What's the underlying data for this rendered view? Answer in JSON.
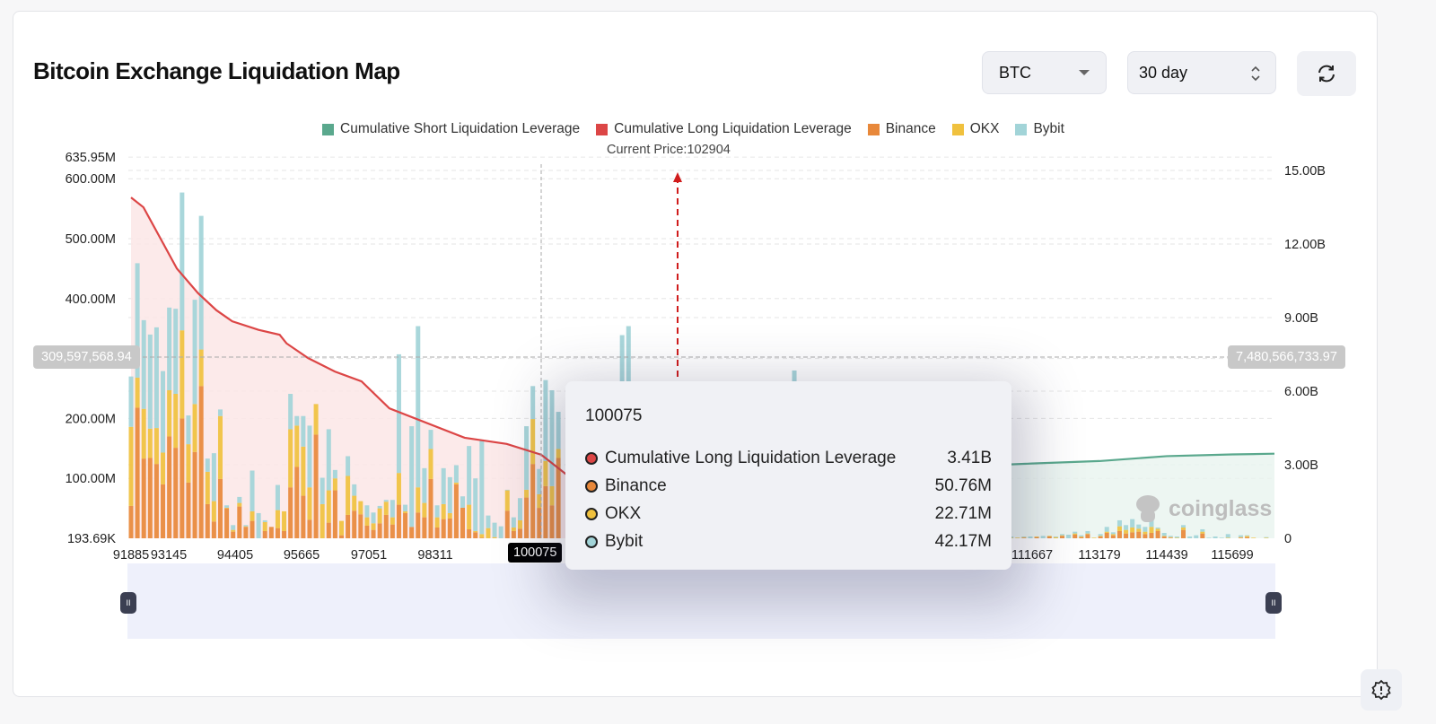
{
  "header": {
    "title": "Bitcoin Exchange Liquidation Map",
    "coin_select": "BTC",
    "range_select": "30 day",
    "refresh_icon": "refresh-icon"
  },
  "alert_icon": "badge-alert-icon",
  "watermark": "coinglass",
  "chart_data": {
    "type": "bar",
    "legend": [
      {
        "name": "Cumulative Short Liquidation Leverage",
        "color": "#5aa88d"
      },
      {
        "name": "Cumulative Long Liquidation Leverage",
        "color": "#dc4646"
      },
      {
        "name": "Binance",
        "color": "#e8883a"
      },
      {
        "name": "OKX",
        "color": "#f0c13e"
      },
      {
        "name": "Bybit",
        "color": "#a2d4d8"
      }
    ],
    "legend_position": "top-center",
    "current_price_label": "Current Price:102904",
    "current_price": 102904,
    "x_ticks": [
      "91885",
      "93145",
      "94405",
      "95665",
      "97051",
      "98311",
      "111667",
      "113179",
      "114439",
      "115699"
    ],
    "left_axis": {
      "ticks": [
        "635.95M",
        "600.00M",
        "500.00M",
        "400.00M",
        "200.00M",
        "100.00M",
        "193.69K"
      ],
      "range_M": [
        0.19369,
        635.95
      ]
    },
    "right_axis": {
      "ticks": [
        "15.00B",
        "12.00B",
        "9.00B",
        "6.00B",
        "3.00B",
        "0"
      ],
      "range_B": [
        0,
        15
      ]
    },
    "crosshair": {
      "x": "100075",
      "left_value": "309,597,568.94",
      "right_value": "7,480,566,733.97"
    },
    "grid": true,
    "bar_units": "M",
    "bar_fields": [
      "Binance",
      "OKX",
      "Bybit"
    ],
    "bars": [
      [
        54,
        132,
        84
      ],
      [
        218,
        50,
        191
      ],
      [
        133,
        83,
        148
      ],
      [
        134,
        49,
        157
      ],
      [
        124,
        60,
        168
      ],
      [
        90,
        53,
        136
      ],
      [
        170,
        77,
        138
      ],
      [
        151,
        90,
        142
      ],
      [
        200,
        147,
        230
      ],
      [
        93,
        64,
        48
      ],
      [
        144,
        80,
        174
      ],
      [
        254,
        61,
        223
      ],
      [
        57,
        54,
        22
      ],
      [
        28,
        34,
        80
      ],
      [
        99,
        105,
        11
      ],
      [
        50,
        1,
        4
      ],
      [
        11,
        3,
        8
      ],
      [
        53,
        6,
        10
      ],
      [
        19,
        1,
        2
      ],
      [
        29,
        16,
        68
      ],
      [
        0,
        0,
        42
      ],
      [
        12,
        15,
        3
      ],
      [
        19,
        0,
        0
      ],
      [
        17,
        30,
        42
      ],
      [
        12,
        33,
        0
      ],
      [
        85,
        97,
        59
      ],
      [
        119,
        69,
        16
      ],
      [
        71,
        82,
        51
      ],
      [
        31,
        54,
        103
      ],
      [
        173,
        51,
        0
      ],
      [
        0,
        57,
        44
      ],
      [
        26,
        54,
        102
      ],
      [
        80,
        20,
        14
      ],
      [
        5,
        24,
        0
      ],
      [
        39,
        65,
        33
      ],
      [
        46,
        25,
        19
      ],
      [
        40,
        22,
        0
      ],
      [
        21,
        14,
        20
      ],
      [
        14,
        11,
        18
      ],
      [
        25,
        25,
        4
      ],
      [
        39,
        22,
        3
      ],
      [
        23,
        12,
        29
      ],
      [
        56,
        53,
        198
      ],
      [
        42,
        3,
        11
      ],
      [
        19,
        0,
        168
      ],
      [
        43,
        42,
        269
      ],
      [
        35,
        24,
        58
      ],
      [
        99,
        50,
        32
      ],
      [
        18,
        17,
        20
      ],
      [
        32,
        25,
        60
      ],
      [
        33,
        9,
        60
      ],
      [
        90,
        3,
        29
      ],
      [
        51,
        0,
        19
      ],
      [
        15,
        41,
        98
      ],
      [
        10,
        2,
        88
      ],
      [
        1,
        6,
        156
      ],
      [
        0,
        17,
        21
      ],
      [
        0,
        2,
        24
      ],
      [
        0,
        0,
        20
      ],
      [
        46,
        34,
        1
      ],
      [
        12,
        6,
        17
      ],
      [
        16,
        14,
        37
      ],
      [
        68,
        13,
        106
      ],
      [
        124,
        75,
        55
      ],
      [
        50.76,
        22.71,
        42.17
      ],
      [
        87,
        42,
        135
      ],
      [
        55,
        32,
        160
      ],
      [
        134,
        15,
        62
      ],
      [
        0,
        0,
        0
      ],
      [
        0,
        0,
        0
      ],
      [
        0,
        0,
        0
      ],
      [
        0,
        0,
        0
      ],
      [
        0,
        0,
        0
      ],
      [
        0,
        0,
        0
      ],
      [
        0,
        0,
        0
      ],
      [
        0,
        0,
        0
      ],
      [
        0,
        0,
        0
      ],
      [
        20,
        10,
        309
      ],
      [
        20,
        10,
        324
      ],
      [
        0,
        0,
        0
      ],
      [
        0,
        0,
        0
      ],
      [
        0,
        0,
        0
      ],
      [
        0,
        0,
        0
      ],
      [
        0,
        0,
        0
      ],
      [
        0,
        0,
        0
      ],
      [
        0,
        0,
        0
      ],
      [
        0,
        0,
        0
      ],
      [
        0,
        0,
        0
      ],
      [
        0,
        0,
        0
      ],
      [
        0,
        0,
        0
      ],
      [
        0,
        0,
        0
      ],
      [
        0,
        0,
        0
      ],
      [
        0,
        0,
        0
      ],
      [
        0,
        0,
        0
      ],
      [
        0,
        0,
        0
      ],
      [
        0,
        0,
        0
      ],
      [
        0,
        0,
        0
      ],
      [
        0,
        0,
        0
      ],
      [
        0,
        0,
        0
      ],
      [
        0,
        0,
        0
      ],
      [
        0,
        0,
        0
      ],
      [
        0,
        0,
        0
      ],
      [
        0,
        0,
        0
      ],
      [
        0,
        0,
        0
      ],
      [
        30,
        20,
        230
      ],
      [
        0,
        0,
        0
      ],
      [
        0,
        0,
        0
      ],
      [
        0,
        0,
        0
      ],
      [
        0,
        0,
        0
      ],
      [
        0,
        0,
        0
      ],
      [
        0,
        0,
        0
      ],
      [
        0,
        0,
        0
      ],
      [
        0,
        0,
        0
      ],
      [
        0,
        0,
        0
      ],
      [
        0,
        0,
        0
      ],
      [
        0,
        0,
        0
      ],
      [
        0,
        0,
        0
      ],
      [
        0,
        0,
        0
      ],
      [
        0,
        0,
        0
      ],
      [
        0,
        0,
        0
      ],
      [
        0,
        0,
        0
      ],
      [
        0,
        0,
        0
      ],
      [
        0,
        0,
        0
      ],
      [
        0,
        0,
        0
      ],
      [
        0,
        0,
        0
      ],
      [
        0,
        0,
        0
      ],
      [
        0,
        0,
        0
      ],
      [
        0,
        0,
        0
      ],
      [
        0,
        0,
        0
      ],
      [
        0,
        0,
        0
      ],
      [
        0,
        0,
        0
      ],
      [
        0,
        0,
        0
      ],
      [
        0,
        0,
        0
      ],
      [
        0,
        0,
        0
      ],
      [
        0,
        0,
        0
      ],
      [
        0,
        0,
        0
      ],
      [
        0,
        0,
        0
      ],
      [
        0,
        0,
        0
      ],
      [
        0,
        1,
        2
      ],
      [
        0,
        1,
        0
      ],
      [
        1,
        1,
        1
      ],
      [
        0,
        0,
        3
      ],
      [
        2,
        1,
        0
      ],
      [
        0,
        0,
        4
      ],
      [
        3,
        1,
        0
      ],
      [
        0,
        2,
        1
      ],
      [
        4,
        1,
        2
      ],
      [
        0,
        0,
        6
      ],
      [
        6,
        2,
        3
      ],
      [
        2,
        1,
        2
      ],
      [
        7,
        1,
        4
      ],
      [
        0,
        1,
        0
      ],
      [
        3,
        1,
        3
      ],
      [
        9,
        2,
        8
      ],
      [
        5,
        2,
        3
      ],
      [
        12,
        8,
        10
      ],
      [
        8,
        6,
        8
      ],
      [
        10,
        8,
        14
      ],
      [
        11,
        5,
        7
      ],
      [
        7,
        4,
        8
      ],
      [
        9,
        10,
        14
      ],
      [
        12,
        4,
        2
      ],
      [
        3,
        1,
        5
      ],
      [
        1,
        1,
        2
      ],
      [
        0,
        1,
        2
      ],
      [
        14,
        4,
        4
      ],
      [
        0,
        0,
        3
      ],
      [
        0,
        0,
        5
      ],
      [
        8,
        3,
        4
      ],
      [
        0,
        0,
        1
      ],
      [
        0,
        0,
        3
      ],
      [
        0,
        0,
        1
      ],
      [
        0,
        1,
        6
      ],
      [
        0,
        0,
        0
      ],
      [
        1,
        1,
        3
      ],
      [
        2,
        2,
        1
      ],
      [
        0,
        1,
        0
      ],
      [
        0,
        0,
        0
      ],
      [
        0,
        1,
        1
      ],
      [
        0,
        0,
        0
      ]
    ],
    "cumulative_long_B": [
      [
        91885,
        13.9
      ],
      [
        92300,
        13.5
      ],
      [
        93300,
        11.0
      ],
      [
        93700,
        10.0
      ],
      [
        94050,
        9.3
      ],
      [
        94350,
        8.85
      ],
      [
        94850,
        8.5
      ],
      [
        95250,
        8.3
      ],
      [
        95380,
        7.95
      ],
      [
        95800,
        7.35
      ],
      [
        96350,
        6.8
      ],
      [
        96900,
        6.4
      ],
      [
        97440,
        5.3
      ],
      [
        98800,
        4.1
      ],
      [
        99500,
        3.85
      ],
      [
        100075,
        3.41
      ],
      [
        100600,
        2.6
      ],
      [
        101200,
        1.8
      ],
      [
        101850,
        0.9
      ],
      [
        102904,
        0
      ]
    ],
    "cumulative_short_B": [
      [
        102904,
        0
      ],
      [
        103500,
        0.6
      ],
      [
        104500,
        1.5
      ],
      [
        106000,
        2.3
      ],
      [
        108000,
        2.8
      ],
      [
        111667,
        3.05
      ],
      [
        113179,
        3.15
      ],
      [
        114439,
        3.35
      ],
      [
        115699,
        3.42
      ],
      [
        117000,
        3.45
      ]
    ],
    "tooltip": {
      "title": "100075",
      "rows": [
        {
          "label": "Cumulative Long Liquidation Leverage",
          "value": "3.41B",
          "color": "#dc4646"
        },
        {
          "label": "Binance",
          "value": "50.76M",
          "color": "#e8883a"
        },
        {
          "label": "OKX",
          "value": "22.71M",
          "color": "#f0c13e"
        },
        {
          "label": "Bybit",
          "value": "42.17M",
          "color": "#a2d4d8"
        }
      ]
    }
  }
}
